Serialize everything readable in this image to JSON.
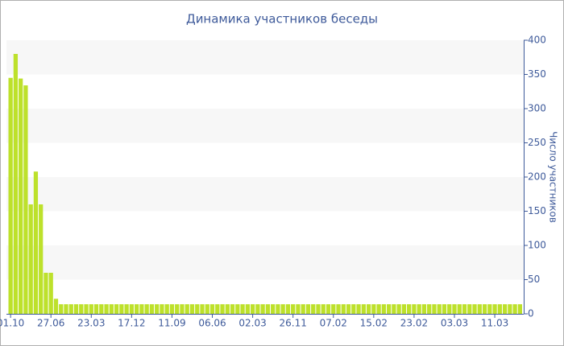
{
  "chart_data": {
    "type": "bar",
    "title": "Динамика участников беседы",
    "y_label": "Число участников",
    "y_axis_position": "right",
    "categories": [
      "01.10",
      null,
      null,
      null,
      null,
      null,
      null,
      null,
      "27.06",
      null,
      null,
      null,
      null,
      null,
      null,
      null,
      "23.03",
      null,
      null,
      null,
      null,
      null,
      null,
      null,
      "17.12",
      null,
      null,
      null,
      null,
      null,
      null,
      null,
      "11.09",
      null,
      null,
      null,
      null,
      null,
      null,
      null,
      "06.06",
      null,
      null,
      null,
      null,
      null,
      null,
      null,
      "02.03",
      null,
      null,
      null,
      null,
      null,
      null,
      null,
      "26.11",
      null,
      null,
      null,
      null,
      null,
      null,
      null,
      "07.02",
      null,
      null,
      null,
      null,
      null,
      null,
      null,
      "15.02",
      null,
      null,
      null,
      null,
      null,
      null,
      null,
      "23.02",
      null,
      null,
      null,
      null,
      null,
      null,
      null,
      "03.03",
      null,
      null,
      null,
      null,
      null,
      null,
      null,
      "11.03",
      null,
      null,
      null,
      null,
      null
    ],
    "values": [
      345,
      380,
      344,
      334,
      160,
      208,
      160,
      60,
      60,
      22,
      14,
      14,
      14,
      14,
      14,
      14,
      14,
      14,
      14,
      14,
      14,
      14,
      14,
      14,
      14,
      14,
      14,
      14,
      14,
      14,
      14,
      14,
      14,
      14,
      14,
      14,
      14,
      14,
      14,
      14,
      14,
      14,
      14,
      14,
      14,
      14,
      14,
      14,
      14,
      14,
      14,
      14,
      14,
      14,
      14,
      14,
      14,
      14,
      14,
      14,
      14,
      14,
      14,
      14,
      14,
      14,
      14,
      14,
      14,
      14,
      14,
      14,
      14,
      14,
      14,
      14,
      14,
      14,
      14,
      14,
      14,
      14,
      14,
      14,
      14,
      14,
      14,
      14,
      14,
      14,
      14,
      14,
      14,
      14,
      14,
      14,
      14,
      14,
      14,
      14,
      14,
      14
    ],
    "color": "#bde12b",
    "ylim": [
      0,
      400
    ],
    "yticks": [
      0,
      50,
      100,
      150,
      200,
      250,
      300,
      350,
      400
    ],
    "grid": "bands",
    "band_color": "#f7f7f7"
  }
}
